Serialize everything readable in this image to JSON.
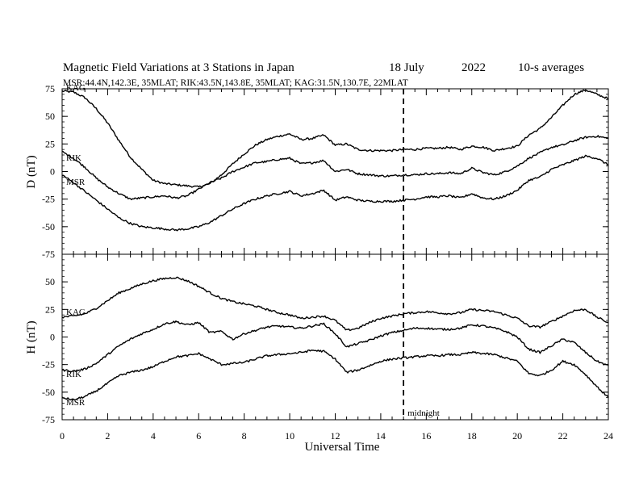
{
  "header": {
    "title": "Magnetic Field Variations at 3 Stations in Japan",
    "date": "18 July",
    "year": "2022",
    "averaging": "10-s averages",
    "stations_line": "MSR:44.4N,142.3E, 35MLAT;  RIK:43.5N,143.8E, 35MLAT;  KAG:31.5N,130.7E, 22MLAT"
  },
  "colors": {
    "line": "#000000",
    "background": "#ffffff"
  },
  "chart_data": [
    {
      "type": "line",
      "panel": "D",
      "ylabel": "D (nT)",
      "xlabel": "",
      "ylim": [
        -75,
        75
      ],
      "xlim": [
        0,
        24
      ],
      "yticks": [
        "75",
        "50",
        "25",
        "0",
        "-25",
        "-50",
        "-75"
      ],
      "yticks_values": [
        75,
        50,
        25,
        0,
        -25,
        -50,
        -75
      ],
      "marker": {
        "x": 15,
        "label": ""
      },
      "series": [
        {
          "name": "KAG",
          "x": [
            0,
            0.5,
            1,
            1.5,
            2,
            2.5,
            3,
            3.5,
            4,
            4.5,
            5,
            5.5,
            6,
            6.5,
            7,
            7.5,
            8,
            8.5,
            9,
            9.5,
            10,
            10.5,
            11,
            11.5,
            12,
            12.5,
            13,
            13.5,
            14,
            14.5,
            15,
            15.5,
            16,
            16.5,
            17,
            17.5,
            18,
            18.5,
            19,
            19.5,
            20,
            20.5,
            21,
            21.5,
            22,
            22.5,
            23,
            23.5,
            24
          ],
          "values": [
            73,
            72,
            67,
            57,
            44,
            28,
            13,
            2,
            -8,
            -11,
            -12,
            -13,
            -14,
            -11,
            -3,
            7,
            16,
            24,
            29,
            32,
            34,
            29,
            30,
            33,
            24,
            25,
            20,
            19,
            19,
            19,
            20,
            20,
            21,
            21,
            22,
            20,
            23,
            22,
            19,
            21,
            23,
            33,
            39,
            49,
            60,
            70,
            74,
            70,
            66
          ]
        },
        {
          "name": "RIK",
          "x": [
            0,
            0.5,
            1,
            1.5,
            2,
            2.5,
            3,
            3.5,
            4,
            4.5,
            5,
            5.5,
            6,
            6.5,
            7,
            7.5,
            8,
            8.5,
            9,
            9.5,
            10,
            10.5,
            11,
            11.5,
            12,
            12.5,
            13,
            13.5,
            14,
            14.5,
            15,
            15.5,
            16,
            16.5,
            17,
            17.5,
            18,
            18.5,
            19,
            19.5,
            20,
            20.5,
            21,
            21.5,
            22,
            22.5,
            23,
            23.5,
            24
          ],
          "values": [
            18,
            12,
            4,
            -6,
            -14,
            -20,
            -25,
            -24,
            -23,
            -22,
            -24,
            -22,
            -16,
            -10,
            -6,
            0,
            4,
            8,
            9,
            11,
            12,
            7,
            8,
            10,
            0,
            2,
            -2,
            -3,
            -4,
            -4,
            -3,
            -3,
            -2,
            -2,
            -1,
            -2,
            3,
            -1,
            -3,
            0,
            5,
            12,
            17,
            22,
            24,
            28,
            31,
            32,
            30
          ]
        },
        {
          "name": "MSR",
          "x": [
            0,
            0.5,
            1,
            1.5,
            2,
            2.5,
            3,
            3.5,
            4,
            4.5,
            5,
            5.5,
            6,
            6.5,
            7,
            7.5,
            8,
            8.5,
            9,
            9.5,
            10,
            10.5,
            11,
            11.5,
            12,
            12.5,
            13,
            13.5,
            14,
            14.5,
            15,
            15.5,
            16,
            16.5,
            17,
            17.5,
            18,
            18.5,
            19,
            19.5,
            20,
            20.5,
            21,
            21.5,
            22,
            22.5,
            23,
            23.5,
            24
          ],
          "values": [
            -3,
            -10,
            -18,
            -26,
            -34,
            -42,
            -47,
            -50,
            -51,
            -52,
            -53,
            -52,
            -50,
            -46,
            -40,
            -34,
            -29,
            -25,
            -22,
            -20,
            -18,
            -22,
            -20,
            -17,
            -26,
            -23,
            -26,
            -27,
            -27,
            -27,
            -26,
            -25,
            -23,
            -23,
            -22,
            -24,
            -20,
            -24,
            -25,
            -22,
            -17,
            -8,
            -5,
            2,
            6,
            10,
            14,
            12,
            6
          ]
        }
      ]
    },
    {
      "type": "line",
      "panel": "H",
      "ylabel": "H (nT)",
      "xlabel": "Universal Time",
      "ylim": [
        -75,
        75
      ],
      "xlim": [
        0,
        24
      ],
      "yticks": [
        "50",
        "25",
        "0",
        "-25",
        "-50",
        "-75"
      ],
      "yticks_values": [
        50,
        25,
        0,
        -25,
        -50,
        -75
      ],
      "xticks": [
        "0",
        "2",
        "4",
        "6",
        "8",
        "10",
        "12",
        "14",
        "16",
        "18",
        "20",
        "22",
        "24"
      ],
      "xticks_values": [
        0,
        2,
        4,
        6,
        8,
        10,
        12,
        14,
        16,
        18,
        20,
        22,
        24
      ],
      "marker": {
        "x": 15,
        "label": "midnight"
      },
      "series": [
        {
          "name": "KAG",
          "x": [
            0,
            0.5,
            1,
            1.5,
            2,
            2.5,
            3,
            3.5,
            4,
            4.5,
            5,
            5.5,
            6,
            6.5,
            7,
            7.5,
            8,
            8.5,
            9,
            9.5,
            10,
            10.5,
            11,
            11.5,
            12,
            12.5,
            13,
            13.5,
            14,
            14.5,
            15,
            15.5,
            16,
            16.5,
            17,
            17.5,
            18,
            18.5,
            19,
            19.5,
            20,
            20.5,
            21,
            21.5,
            22,
            22.5,
            23,
            23.5,
            24
          ],
          "values": [
            18,
            19,
            21,
            26,
            33,
            40,
            44,
            48,
            51,
            53,
            54,
            51,
            46,
            40,
            35,
            32,
            30,
            28,
            25,
            22,
            20,
            17,
            18,
            19,
            15,
            6,
            8,
            13,
            17,
            19,
            21,
            22,
            23,
            22,
            21,
            22,
            25,
            24,
            23,
            20,
            17,
            10,
            9,
            14,
            19,
            24,
            25,
            18,
            13
          ]
        },
        {
          "name": "RIK",
          "x": [
            0,
            0.5,
            1,
            1.5,
            2,
            2.5,
            3,
            3.5,
            4,
            4.5,
            5,
            5.5,
            6,
            6.5,
            7,
            7.5,
            8,
            8.5,
            9,
            9.5,
            10,
            10.5,
            11,
            11.5,
            12,
            12.5,
            13,
            13.5,
            14,
            14.5,
            15,
            15.5,
            16,
            16.5,
            17,
            17.5,
            18,
            18.5,
            19,
            19.5,
            20,
            20.5,
            21,
            21.5,
            22,
            22.5,
            23,
            23.5,
            24
          ],
          "values": [
            -30,
            -31,
            -29,
            -24,
            -16,
            -8,
            -2,
            3,
            7,
            12,
            14,
            11,
            13,
            4,
            5,
            -2,
            3,
            6,
            9,
            10,
            9,
            8,
            10,
            12,
            3,
            -9,
            -6,
            -3,
            1,
            4,
            6,
            8,
            8,
            7,
            7,
            8,
            11,
            10,
            8,
            5,
            0,
            -11,
            -14,
            -8,
            -2,
            -5,
            -14,
            -22,
            -26
          ]
        },
        {
          "name": "MSR",
          "x": [
            0,
            0.5,
            1,
            1.5,
            2,
            2.5,
            3,
            3.5,
            4,
            4.5,
            5,
            5.5,
            6,
            6.5,
            7,
            7.5,
            8,
            8.5,
            9,
            9.5,
            10,
            10.5,
            11,
            11.5,
            12,
            12.5,
            13,
            13.5,
            14,
            14.5,
            15,
            15.5,
            16,
            16.5,
            17,
            17.5,
            18,
            18.5,
            19,
            19.5,
            20,
            20.5,
            21,
            21.5,
            22,
            22.5,
            23,
            23.5,
            24
          ],
          "values": [
            -55,
            -57,
            -54,
            -49,
            -42,
            -35,
            -32,
            -30,
            -27,
            -22,
            -18,
            -17,
            -15,
            -20,
            -25,
            -24,
            -23,
            -20,
            -17,
            -16,
            -15,
            -14,
            -12,
            -13,
            -20,
            -32,
            -30,
            -26,
            -22,
            -20,
            -19,
            -18,
            -17,
            -17,
            -16,
            -16,
            -14,
            -15,
            -16,
            -19,
            -22,
            -33,
            -35,
            -30,
            -22,
            -25,
            -34,
            -45,
            -55
          ]
        }
      ]
    }
  ]
}
